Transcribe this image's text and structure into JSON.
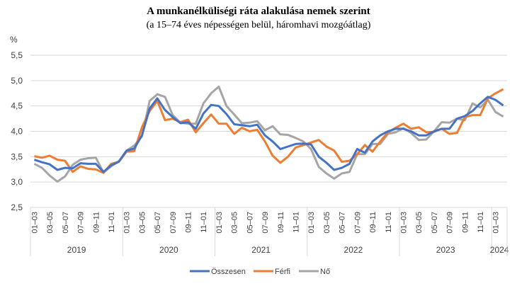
{
  "chart_data": {
    "type": "line",
    "title": "A munkanélküliségi ráta alakulása nemek szerint",
    "subtitle": "(a 15–74 éves népességen belül, háromhavi mozgóátlag)",
    "ylabel": "%",
    "ylim": [
      2.5,
      5.5
    ],
    "yticks": [
      "2,5",
      "3,0",
      "3,5",
      "4,0",
      "4,5",
      "5,0",
      "5,5"
    ],
    "ytick_values": [
      2.5,
      3.0,
      3.5,
      4.0,
      4.5,
      5.0,
      5.5
    ],
    "grid": true,
    "legend_position": "bottom",
    "years": [
      {
        "label": "2019",
        "count": 12
      },
      {
        "label": "2020",
        "count": 12
      },
      {
        "label": "2021",
        "count": 12
      },
      {
        "label": "2022",
        "count": 12
      },
      {
        "label": "2023",
        "count": 12
      },
      {
        "label": "2024",
        "count": 2
      }
    ],
    "tick_labels": [
      "01–03",
      "03–05",
      "05–07",
      "07–09",
      "09–11",
      "11–01"
    ],
    "series": [
      {
        "name": "Összesen",
        "color": "#4472C4",
        "values": [
          3.44,
          3.39,
          3.35,
          3.24,
          3.28,
          3.27,
          3.37,
          3.36,
          3.36,
          3.2,
          3.33,
          3.4,
          3.62,
          3.66,
          3.92,
          4.45,
          4.65,
          4.42,
          4.28,
          4.16,
          4.18,
          4.05,
          4.35,
          4.52,
          4.5,
          4.34,
          4.14,
          4.12,
          4.1,
          4.13,
          3.92,
          3.8,
          3.65,
          3.7,
          3.75,
          3.76,
          3.74,
          3.5,
          3.38,
          3.24,
          3.28,
          3.36,
          3.65,
          3.58,
          3.8,
          3.92,
          4.0,
          4.05,
          4.05,
          4.0,
          3.92,
          3.92,
          4.0,
          4.05,
          4.05,
          4.25,
          4.3,
          4.4,
          4.55,
          4.68,
          4.62,
          4.51
        ]
      },
      {
        "name": "Férfi",
        "color": "#ED7D31",
        "values": [
          3.51,
          3.48,
          3.52,
          3.44,
          3.42,
          3.2,
          3.31,
          3.26,
          3.25,
          3.18,
          3.36,
          3.4,
          3.6,
          3.61,
          4.08,
          4.4,
          4.6,
          4.22,
          4.25,
          4.18,
          4.23,
          3.98,
          4.16,
          4.33,
          4.15,
          4.15,
          3.95,
          4.07,
          4.0,
          4.03,
          3.8,
          3.52,
          3.38,
          3.5,
          3.68,
          3.73,
          3.78,
          3.83,
          3.7,
          3.62,
          3.4,
          3.42,
          3.55,
          3.73,
          3.6,
          3.8,
          3.98,
          4.07,
          4.15,
          4.05,
          4.08,
          3.98,
          3.99,
          4.05,
          3.95,
          3.97,
          4.28,
          4.32,
          4.32,
          4.65,
          4.75,
          4.83
        ]
      },
      {
        "name": "Nő",
        "color": "#A5A5A5",
        "values": [
          3.36,
          3.28,
          3.13,
          3.01,
          3.11,
          3.34,
          3.44,
          3.47,
          3.48,
          3.19,
          3.31,
          3.41,
          3.62,
          3.72,
          3.9,
          4.6,
          4.73,
          4.68,
          4.32,
          4.17,
          4.15,
          4.15,
          4.55,
          4.75,
          4.88,
          4.5,
          4.33,
          4.16,
          4.17,
          4.2,
          4.02,
          4.1,
          3.94,
          3.93,
          3.87,
          3.8,
          3.65,
          3.3,
          3.17,
          3.07,
          3.17,
          3.2,
          3.55,
          3.55,
          3.75,
          3.75,
          3.95,
          3.98,
          4.06,
          3.97,
          3.83,
          3.84,
          4.0,
          4.18,
          4.17,
          4.25,
          4.22,
          4.55,
          4.47,
          4.62,
          4.38,
          4.29
        ]
      }
    ]
  }
}
